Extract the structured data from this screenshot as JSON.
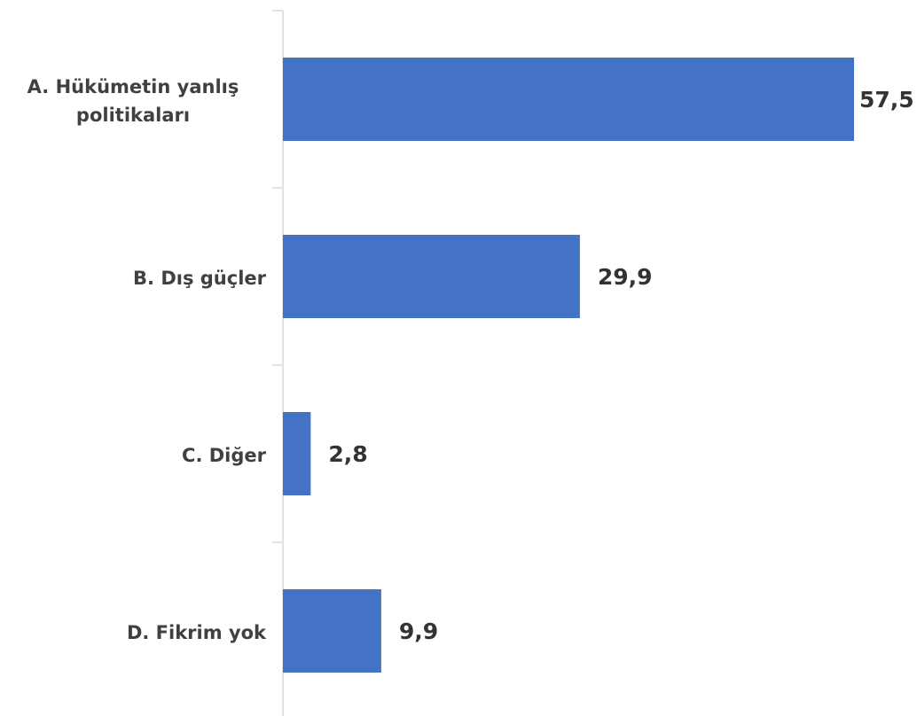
{
  "chart_data": {
    "type": "bar",
    "orientation": "horizontal",
    "categories": [
      "A. Hükümetin yanlış politikaları",
      "B. Dış güçler",
      "C. Diğer",
      "D. Fikrim yok"
    ],
    "values": [
      57.5,
      29.9,
      2.8,
      9.9
    ],
    "value_labels": [
      "57,5",
      "29,9",
      "2,8",
      "9,9"
    ],
    "color": "#4472c4"
  }
}
